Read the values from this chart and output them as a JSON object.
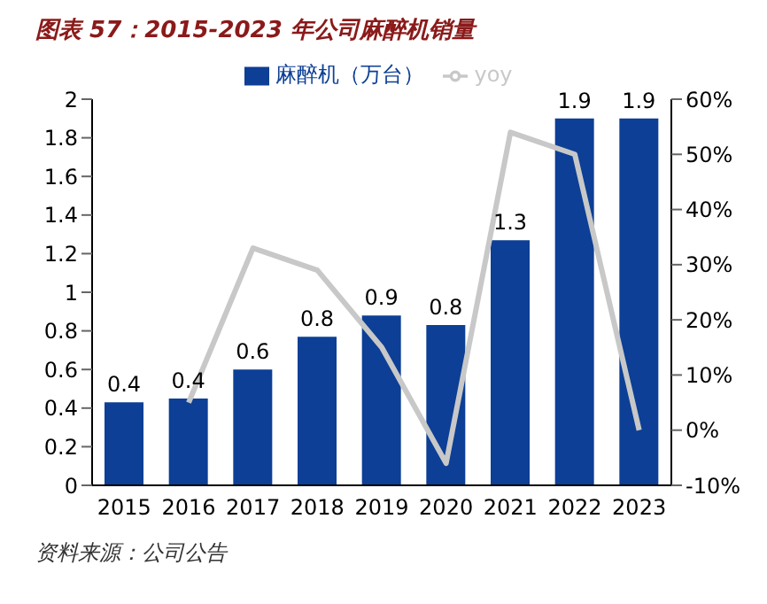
{
  "chart_data": {
    "type": "bar",
    "title": "图表 57：2015-2023 年公司麻醉机销量",
    "categories": [
      "2015",
      "2016",
      "2017",
      "2018",
      "2019",
      "2020",
      "2021",
      "2022",
      "2023"
    ],
    "series": [
      {
        "name": "麻醉机（万台）",
        "color": "#0c3f95",
        "values": [
          0.43,
          0.45,
          0.6,
          0.77,
          0.88,
          0.83,
          1.27,
          1.9,
          1.9
        ],
        "value_labels": [
          "0.4",
          "0.4",
          "0.6",
          "0.8",
          "0.9",
          "0.8",
          "1.3",
          "1.9",
          "1.9"
        ]
      },
      {
        "name": "yoy",
        "type": "line",
        "axis": "y2",
        "color": "#c8c8c8",
        "values": [
          null,
          5,
          33,
          29,
          15,
          -6,
          54,
          50,
          0
        ]
      }
    ],
    "ylim": [
      0,
      2
    ],
    "yticks": [
      0,
      0.2,
      0.4,
      0.6,
      0.8,
      1,
      1.2,
      1.4,
      1.6,
      1.8,
      2
    ],
    "y2lim": [
      -10,
      60
    ],
    "y2ticks": [
      {
        "value": -10,
        "label": "-10%"
      },
      {
        "value": 0,
        "label": "0%"
      },
      {
        "value": 10,
        "label": "10%"
      },
      {
        "value": 20,
        "label": "20%"
      },
      {
        "value": 30,
        "label": "30%"
      },
      {
        "value": 40,
        "label": "40%"
      },
      {
        "value": 50,
        "label": "50%"
      },
      {
        "value": 60,
        "label": "60%"
      }
    ],
    "legend": "top",
    "grid": false,
    "marker": "none",
    "annotations": [
      "资料来源：公司公告"
    ]
  }
}
